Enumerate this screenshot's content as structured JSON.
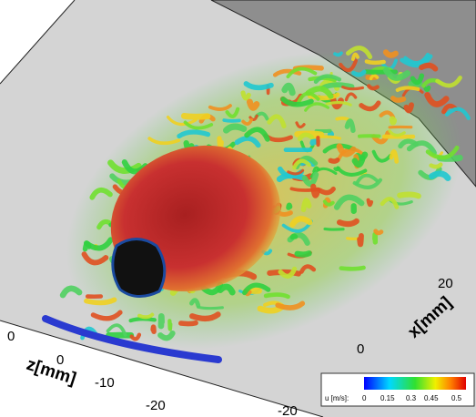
{
  "z_axis": {
    "label": "z[mm]",
    "ticks": [
      "0",
      "0",
      "-10",
      "-20"
    ]
  },
  "x_axis": {
    "label": "x[mm]",
    "ticks": [
      "20",
      "0",
      "-20"
    ]
  },
  "colorbar": {
    "label": "u [m/s]:",
    "ticks": [
      "0",
      "0.15",
      "0.3",
      "0.45",
      "0.5"
    ]
  }
}
